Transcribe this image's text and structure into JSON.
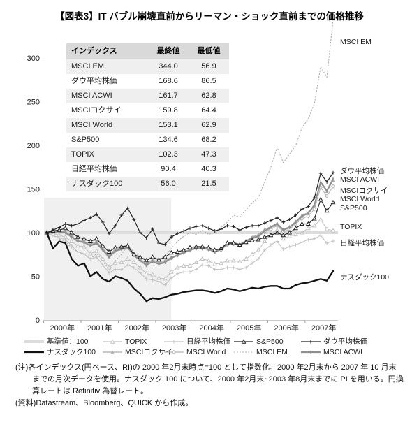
{
  "title": "【図表3】IT バブル崩壊直前からリーマン・ショック直前までの価格推移",
  "table": {
    "headers": [
      "インデックス",
      "最終値",
      "最低値"
    ],
    "rows": [
      {
        "name": "MSCI EM",
        "final": "344.0",
        "low": "56.9"
      },
      {
        "name": "ダウ平均株価",
        "final": "168.6",
        "low": "86.5"
      },
      {
        "name": "MSCI ACWI",
        "final": "161.7",
        "low": "62.8"
      },
      {
        "name": "MSCIコクサイ",
        "final": "159.8",
        "low": "64.4"
      },
      {
        "name": "MSCI World",
        "final": "153.1",
        "low": "62.9"
      },
      {
        "name": "S&P500",
        "final": "134.6",
        "low": "68.2"
      },
      {
        "name": "TOPIX",
        "final": "102.3",
        "low": "47.3"
      },
      {
        "name": "日経平均株価",
        "final": "90.4",
        "low": "40.3"
      },
      {
        "name": "ナスダック100",
        "final": "56.0",
        "low": "21.5"
      }
    ]
  },
  "chart_data": {
    "type": "line",
    "title": "",
    "xlabel": "",
    "ylabel": "",
    "x_start": "2000-02",
    "x_end": "2007-10",
    "x_step_months": 2,
    "ylim": [
      0,
      300
    ],
    "y_ticks": [
      0,
      50,
      100,
      150,
      200,
      250,
      300
    ],
    "x_tick_labels": [
      "2000年",
      "2001年",
      "2002年",
      "2003年",
      "2004年",
      "2005年",
      "2006年",
      "2007年"
    ],
    "grid": false,
    "baseline": {
      "key": "baseline",
      "name": "基準値：100",
      "value": 100,
      "color": "#dcdcdc"
    },
    "shaded_region": {
      "start": "2000-02",
      "end": "2003-06",
      "top_value": 140,
      "color": "#f0f0f0"
    },
    "series": [
      {
        "key": "em",
        "name": "MSCI EM",
        "color": "#b0b0b0",
        "line": "dotted",
        "marker": "none",
        "values": [
          100,
          97,
          93,
          90,
          82,
          78,
          75,
          70,
          76,
          68,
          56.9,
          68,
          75,
          85,
          78,
          72,
          70,
          72,
          70,
          73,
          82,
          90,
          96,
          100,
          98,
          103,
          98,
          100,
          106,
          112,
          120,
          118,
          126,
          134,
          140,
          158,
          175,
          198,
          180,
          190,
          200,
          220,
          230,
          248,
          290,
          278,
          344
        ]
      },
      {
        "key": "nikkei",
        "name": "日経平均株価",
        "color": "#c4c4c4",
        "line": "solid",
        "marker": "plus",
        "values": [
          100,
          97,
          94,
          92,
          85,
          78,
          76,
          70,
          72,
          63,
          54,
          58,
          58,
          63,
          60,
          54,
          47,
          46,
          44,
          40.3,
          48,
          53,
          55,
          55,
          58,
          63,
          62,
          58,
          58,
          60,
          60,
          58,
          60,
          65,
          70,
          80,
          86,
          90,
          81,
          84,
          86,
          89,
          92,
          93,
          97,
          88,
          90.4
        ]
      },
      {
        "key": "topix",
        "name": "TOPIX",
        "color": "#c4c4c4",
        "line": "solid",
        "marker": "triangle-open",
        "values": [
          100,
          99,
          97,
          95,
          90,
          85,
          84,
          76,
          79,
          70,
          60,
          65,
          66,
          70,
          66,
          60,
          53,
          52,
          48,
          47.3,
          55,
          60,
          62,
          62,
          66,
          70,
          68,
          64,
          65,
          68,
          68,
          67,
          70,
          75,
          80,
          90,
          98,
          103,
          93,
          96,
          98,
          100,
          105,
          108,
          115,
          104,
          102.3
        ]
      },
      {
        "key": "world",
        "name": "MSCI World",
        "color": "#b4b4b4",
        "line": "solid",
        "marker": "diamond",
        "values": [
          100,
          101,
          102,
          101,
          96,
          91,
          89,
          86,
          89,
          81,
          73,
          80,
          82,
          84,
          75,
          69,
          62.9,
          68,
          65,
          67,
          71,
          74,
          77,
          80,
          82,
          82,
          81,
          78,
          80,
          86,
          87,
          85,
          89,
          93,
          95,
          101,
          104,
          108,
          101,
          104,
          110,
          116,
          119,
          127,
          152,
          142,
          153.1
        ]
      },
      {
        "key": "kokusai",
        "name": "MSCIコクサイ",
        "color": "#ababab",
        "line": "solid",
        "marker": "triangle-filled",
        "values": [
          100,
          101,
          102,
          101,
          96,
          91,
          90,
          87,
          90,
          82,
          74,
          81,
          83,
          85,
          76,
          70,
          64.4,
          69,
          66,
          68,
          72,
          75,
          78,
          81,
          83,
          83,
          82,
          79,
          82,
          88,
          89,
          87,
          91,
          95,
          98,
          104,
          107,
          111,
          104,
          107,
          113,
          120,
          123,
          131,
          157,
          147,
          159.8
        ]
      },
      {
        "key": "acwi",
        "name": "MSCI ACWI",
        "color": "#8e8e8e",
        "line": "solid-thick",
        "marker": "tick",
        "values": [
          100,
          101,
          101,
          100,
          95,
          90,
          89,
          85,
          88,
          80,
          72,
          79,
          81,
          83,
          74,
          68,
          62.8,
          67,
          64,
          66,
          71,
          74,
          77,
          80,
          82,
          82,
          81,
          78,
          81,
          87,
          88,
          86,
          90,
          94,
          96,
          102,
          106,
          110,
          103,
          106,
          112,
          119,
          122,
          132,
          158,
          148,
          161.7
        ]
      },
      {
        "key": "sp500",
        "name": "S&P500",
        "color": "#222222",
        "line": "solid",
        "marker": "triangle-open",
        "values": [
          100,
          102,
          103,
          105,
          100,
          95,
          93,
          90,
          93,
          85,
          78,
          83,
          84,
          85,
          75,
          72,
          68.2,
          72,
          69,
          72,
          77,
          78,
          80,
          83,
          84,
          84,
          83,
          80,
          82,
          88,
          88,
          86,
          89,
          91,
          92,
          95,
          97,
          100,
          97,
          100,
          105,
          110,
          110,
          116,
          138,
          125,
          134.6
        ]
      },
      {
        "key": "dow",
        "name": "ダウ平均株価",
        "color": "#222222",
        "line": "solid",
        "marker": "plus",
        "values": [
          100,
          103,
          106,
          110,
          108,
          110,
          114,
          117,
          121,
          112,
          99,
          108,
          120,
          128,
          115,
          100,
          94,
          104,
          88,
          86.5,
          95,
          99,
          102,
          105,
          107,
          108,
          105,
          102,
          104,
          108,
          107,
          103,
          106,
          108,
          108,
          111,
          114,
          117,
          112,
          115,
          120,
          127,
          130,
          140,
          168,
          158,
          168.6
        ]
      },
      {
        "key": "nasdaq",
        "name": "ナスダック100",
        "color": "#111111",
        "line": "solid-thick",
        "marker": "none",
        "values": [
          100,
          82,
          90,
          88,
          70,
          62,
          65,
          50,
          55,
          47,
          44,
          50,
          48,
          45,
          36,
          30,
          21.5,
          25,
          24,
          26,
          29,
          30,
          32,
          33,
          34,
          34,
          33,
          31,
          33,
          36,
          35,
          33,
          35,
          37,
          36,
          38,
          39,
          39,
          36,
          36,
          40,
          42,
          43,
          45,
          47,
          45,
          56
        ]
      }
    ]
  },
  "right_labels": [
    "MSCI EM",
    "ダウ平均株価",
    "MSCI ACWI",
    "MSCIコクサイ",
    "MSCI World",
    "S&P500",
    "TOPIX",
    "日経平均株価",
    "ナスダック100"
  ],
  "legend": {
    "row1": [
      {
        "label": "基準値：100",
        "series": "baseline"
      },
      {
        "label": "TOPIX",
        "series": "topix"
      },
      {
        "label": "日経平均株価",
        "series": "nikkei"
      },
      {
        "label": "S&P500",
        "series": "sp500"
      },
      {
        "label": "ダウ平均株価",
        "series": "dow"
      }
    ],
    "row2": [
      {
        "label": "ナスダック100",
        "series": "nasdaq"
      },
      {
        "label": "MSCIコクサイ",
        "series": "kokusai"
      },
      {
        "label": "MSCI World",
        "series": "world"
      },
      {
        "label": "MSCI EM",
        "series": "em"
      },
      {
        "label": "MSCI ACWI",
        "series": "acwi"
      }
    ]
  },
  "notes": {
    "lines": [
      "(注)各インデックス(円ベース、RI)の 2000 年2月末時点=100 として指数化。2000 年2月末から 2007 年 10 月末",
      "までの月次データを使用。ナスダック 100 について、2000 年2月末~2003 年8月末までに PI を用いる。円換",
      "算レートは Refinitiv 為替レート。",
      "(資料)Datastream、Bloomberg、QUICK から作成。"
    ]
  }
}
